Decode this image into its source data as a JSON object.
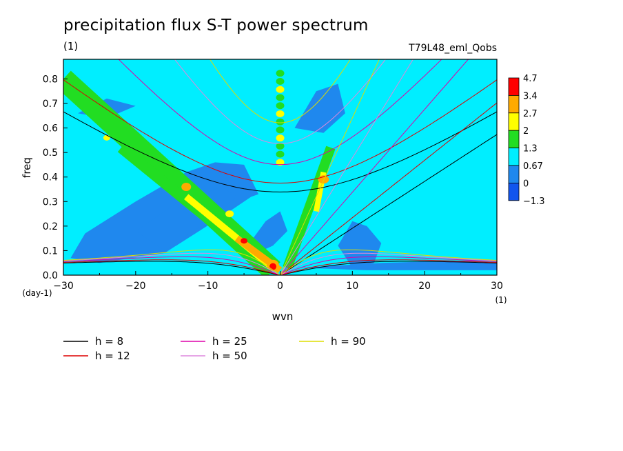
{
  "header": {
    "title": "precipitation flux S-T power spectrum",
    "units": "(1)",
    "run": "T79L48_eml_Qobs"
  },
  "chart_data": {
    "type": "heatmap",
    "title": "precipitation flux S-T power spectrum",
    "xlabel": "wvn",
    "ylabel": "freq",
    "xunits": "(1)",
    "yunits": "(day-1)",
    "xlim": [
      -30,
      30
    ],
    "ylim": [
      0,
      0.88
    ],
    "xticks": [
      "−30",
      "−20",
      "−10",
      "0",
      "10",
      "20",
      "30"
    ],
    "yticks": [
      "0.0",
      "0.1",
      "0.2",
      "0.3",
      "0.4",
      "0.5",
      "0.6",
      "0.7",
      "0.8"
    ],
    "xtick_values": [
      -30,
      -20,
      -10,
      0,
      10,
      20,
      30
    ],
    "ytick_values": [
      0,
      0.1,
      0.2,
      0.3,
      0.4,
      0.5,
      0.6,
      0.7,
      0.8
    ],
    "colorbar": {
      "labels": [
        "4.7",
        "3.4",
        "2.7",
        "2",
        "1.3",
        "0.67",
        "0",
        "−1.3"
      ],
      "colors": [
        "#ff0000",
        "#ffaa00",
        "#ffff00",
        "#22dd22",
        "#00eeff",
        "#1f88ee",
        "#1155ee"
      ]
    },
    "field_colors": {
      "background": "#00eeff",
      "low": "#1f88ee",
      "mid": "#22dd22",
      "high": "#ffff00",
      "higher": "#ffaa00",
      "peak": "#ff0000"
    },
    "dispersion_curves": [
      {
        "name": "h =  8",
        "h": 8,
        "color": "#000000"
      },
      {
        "name": "h = 12",
        "h": 12,
        "color": "#dd0000"
      },
      {
        "name": "h = 25",
        "h": 25,
        "color": "#dd00aa"
      },
      {
        "name": "h = 50",
        "h": 50,
        "color": "#dd88dd"
      },
      {
        "name": "h = 90",
        "h": 90,
        "color": "#dddd00"
      }
    ]
  }
}
